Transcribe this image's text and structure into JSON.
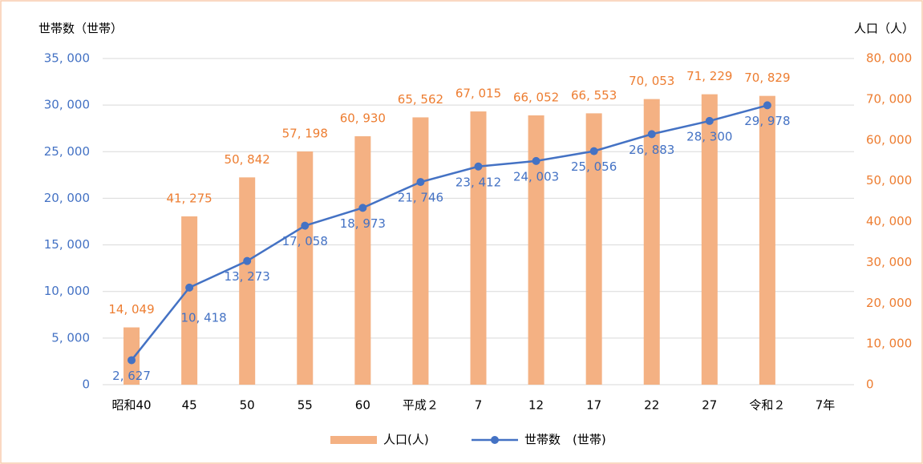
{
  "chart_data": {
    "type": "bar_line",
    "y_title": "世帯数（世帯）",
    "y2_title": "人口（人）",
    "categories": [
      "昭和40",
      "45",
      "50",
      "55",
      "60",
      "平成２",
      "7",
      "12",
      "17",
      "22",
      "27",
      "令和２",
      "7年"
    ],
    "series": [
      {
        "name": "人口(人)",
        "type": "bar",
        "axis": "y2",
        "color": "#f4b183",
        "label_color": "#ed7d31",
        "values": [
          14049,
          41275,
          50842,
          57198,
          60930,
          65562,
          67015,
          66052,
          66553,
          70053,
          71229,
          70829,
          null
        ],
        "value_labels": [
          "14, 049",
          "41, 275",
          "50, 842",
          "57, 198",
          "60, 930",
          "65, 562",
          "67, 015",
          "66, 052",
          "66, 553",
          "70, 053",
          "71, 229",
          "70, 829",
          null
        ]
      },
      {
        "name": "世帯数　(世帯)",
        "type": "line",
        "axis": "y",
        "color": "#4472c4",
        "label_color": "#4472c4",
        "values": [
          2627,
          10418,
          13273,
          17058,
          18973,
          21746,
          23412,
          24003,
          25056,
          26883,
          28300,
          29978,
          null
        ],
        "value_labels": [
          "2, 627",
          "10, 418",
          "13, 273",
          "17, 058",
          "18, 973",
          "21, 746",
          "23, 412",
          "24, 003",
          "25, 056",
          "26, 883",
          "28, 300",
          "29, 978",
          null
        ]
      }
    ],
    "ylim": [
      0,
      35000
    ],
    "yticks": [
      0,
      {
        "value": 5000,
        "label": "5, 000"
      },
      {
        "value": 10000,
        "label": "10, 000"
      },
      {
        "value": 15000,
        "label": "15, 000"
      },
      {
        "value": 20000,
        "label": "20, 000"
      },
      {
        "value": 25000,
        "label": "25, 000"
      },
      {
        "value": 30000,
        "label": "30, 000"
      },
      {
        "value": 35000,
        "label": "35, 000"
      }
    ],
    "y2lim": [
      0,
      80000
    ],
    "y2ticks": [
      0,
      {
        "value": 10000,
        "label": "10, 000"
      },
      {
        "value": 20000,
        "label": "20, 000"
      },
      {
        "value": 30000,
        "label": "30, 000"
      },
      {
        "value": 40000,
        "label": "40, 000"
      },
      {
        "value": 50000,
        "label": "50, 000"
      },
      {
        "value": 60000,
        "label": "60, 000"
      },
      {
        "value": 70000,
        "label": "70, 000"
      },
      {
        "value": 80000,
        "label": "80, 000"
      }
    ],
    "grid": true,
    "legend": "bottom"
  }
}
